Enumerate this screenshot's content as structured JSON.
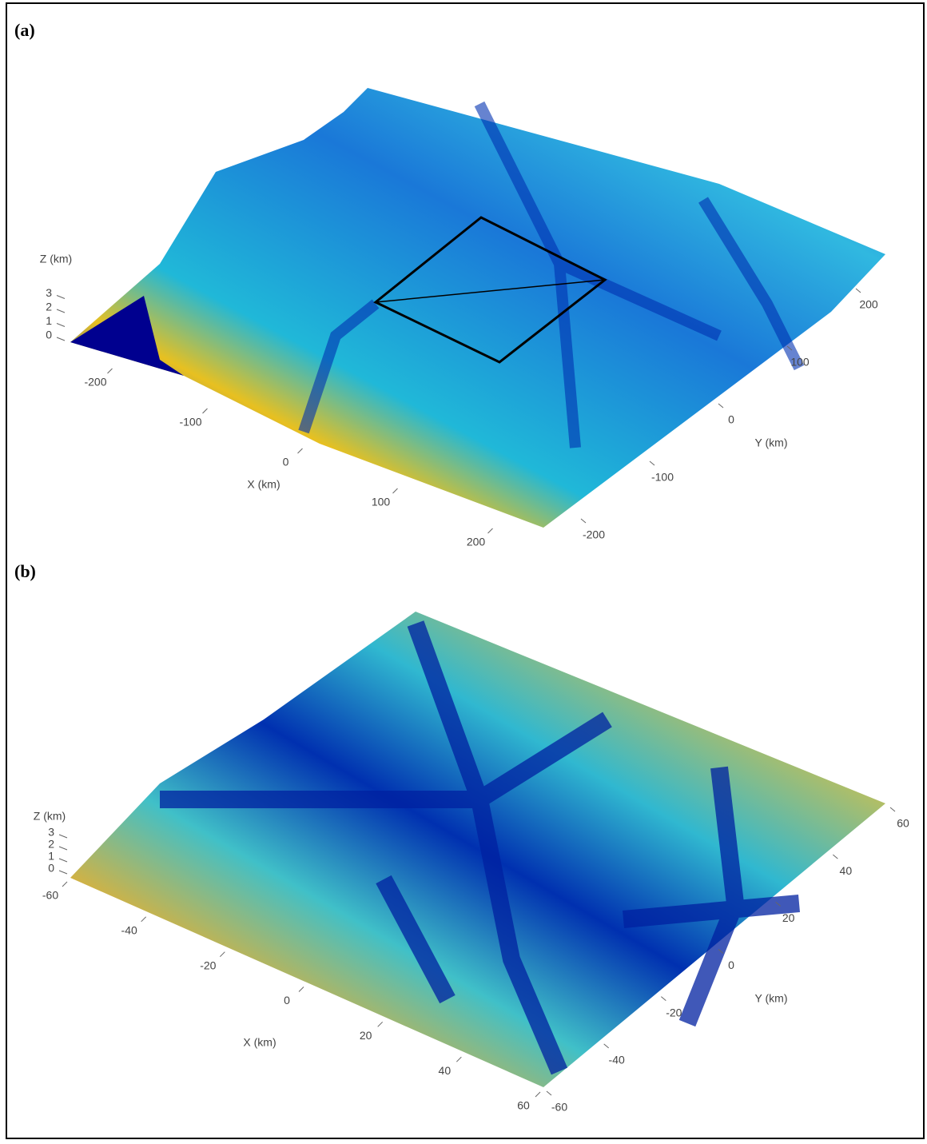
{
  "chart_data": [
    {
      "type": "surface3d",
      "panel_label": "(a)",
      "xlabel": "X (km)",
      "ylabel": "Y (km)",
      "zlabel": "Z (km)",
      "xlim": [
        -250,
        250
      ],
      "ylim": [
        -250,
        250
      ],
      "zlim": [
        0,
        3
      ],
      "xticks": [
        -200,
        -100,
        0,
        100,
        200
      ],
      "yticks": [
        -200,
        -100,
        0,
        100,
        200
      ],
      "zticks": [
        0,
        1,
        2,
        3
      ]
    },
    {
      "type": "surface3d",
      "panel_label": "(b)",
      "xlabel": "X (km)",
      "ylabel": "Y (km)",
      "zlabel": "Z (km)",
      "xlim": [
        -60,
        60
      ],
      "ylim": [
        -60,
        60
      ],
      "zlim": [
        0,
        3
      ],
      "xticks": [
        -60,
        -40,
        -20,
        0,
        20,
        40,
        60
      ],
      "yticks": [
        -60,
        -40,
        -20,
        0,
        20,
        40,
        60
      ],
      "zticks": [
        0,
        1,
        2,
        3
      ]
    }
  ]
}
